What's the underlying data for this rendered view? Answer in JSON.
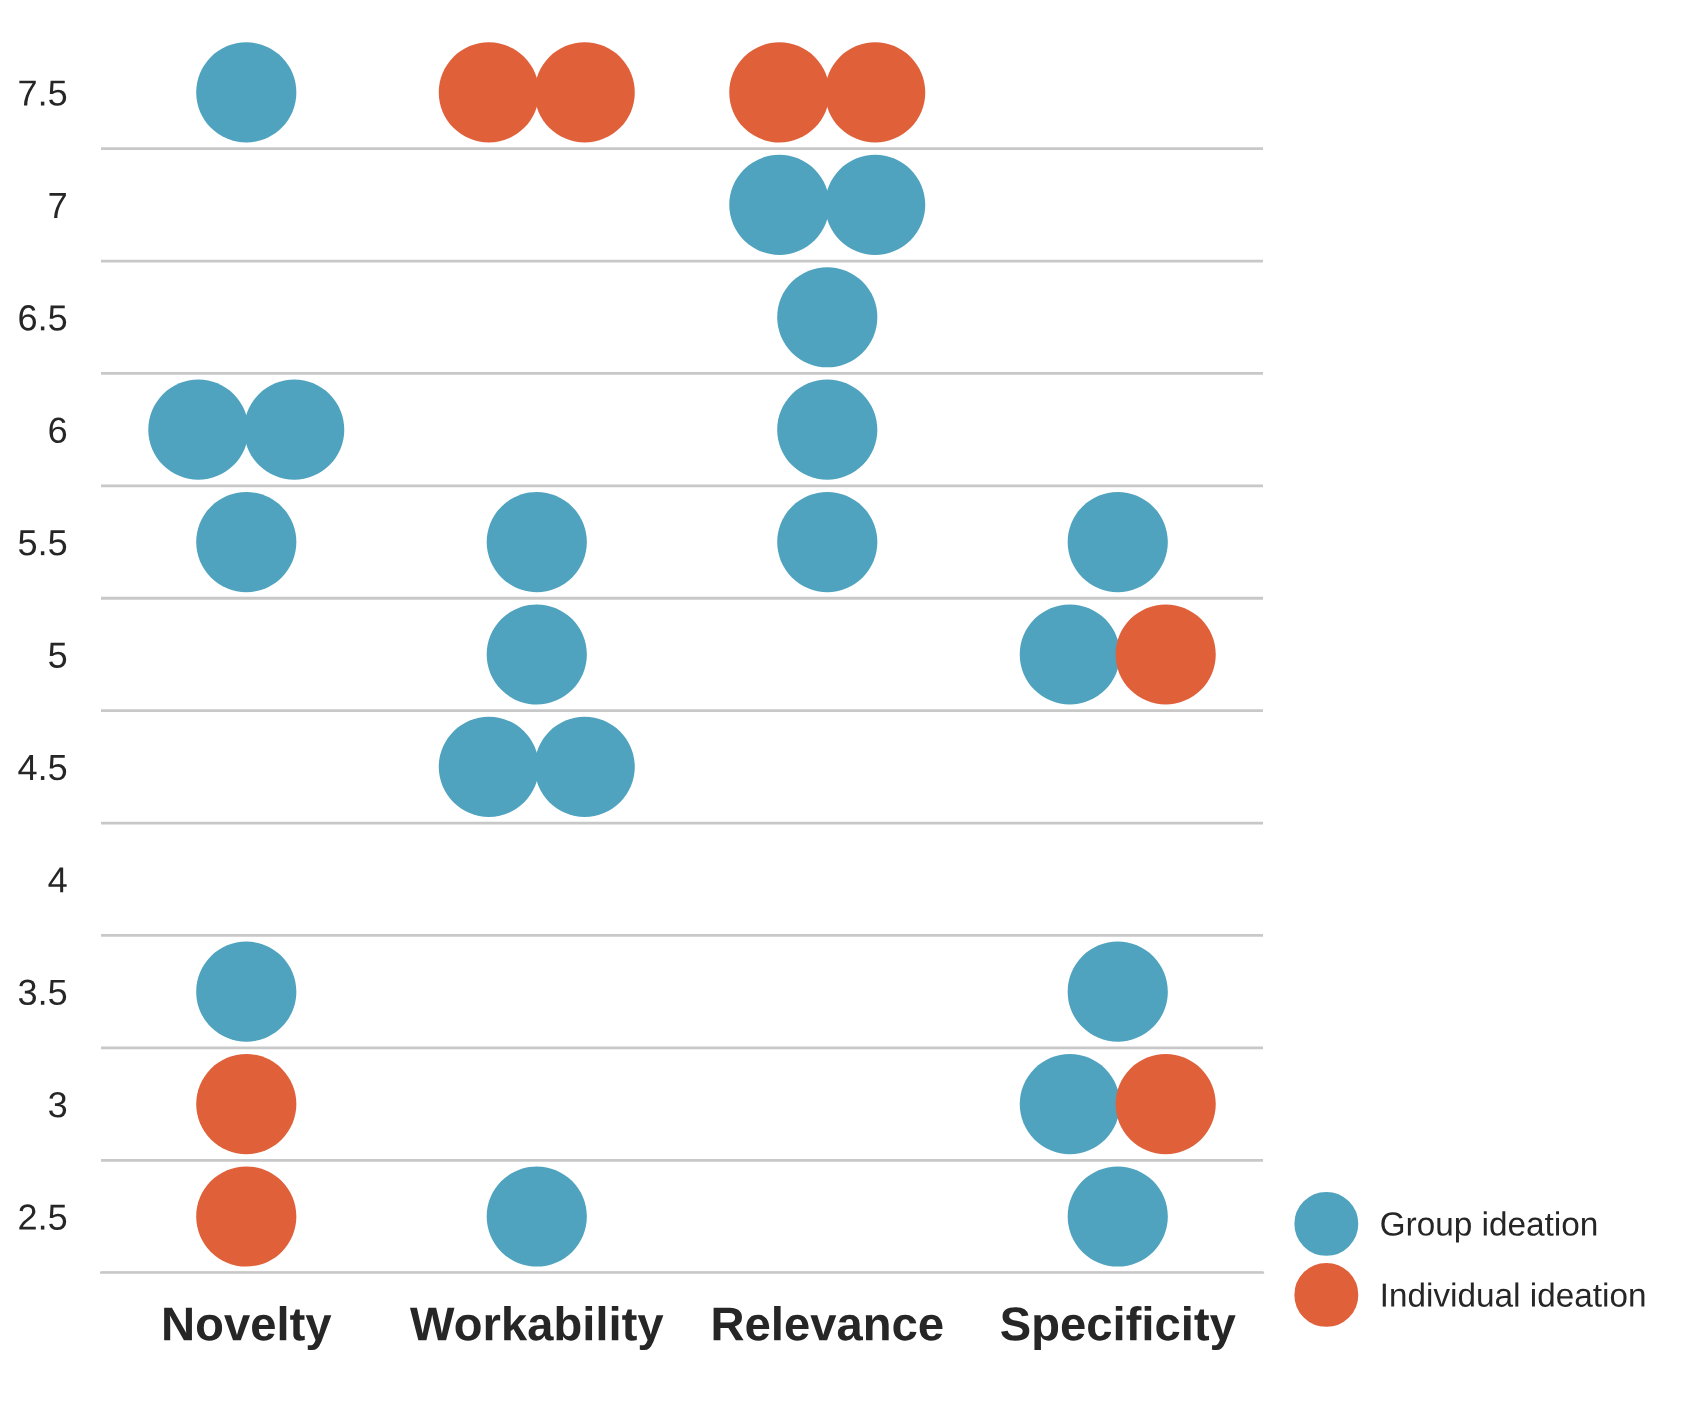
{
  "chart_data": {
    "type": "scatter",
    "categories": [
      "Novelty",
      "Workability",
      "Relevance",
      "Specificity"
    ],
    "series": [
      {
        "name": "Group ideation",
        "color": "#4fa3bf",
        "x": [
          "Novelty",
          "Novelty",
          "Novelty",
          "Novelty",
          "Novelty",
          "Workability",
          "Workability",
          "Workability",
          "Workability",
          "Workability",
          "Relevance",
          "Relevance",
          "Relevance",
          "Relevance",
          "Relevance",
          "Specificity",
          "Specificity",
          "Specificity",
          "Specificity",
          "Specificity"
        ],
        "values": [
          7.5,
          6,
          6,
          5.5,
          3.5,
          5.5,
          5,
          4.5,
          4.5,
          2.5,
          7,
          7,
          6.5,
          6,
          5.5,
          5.5,
          5,
          3.5,
          3,
          2.5
        ]
      },
      {
        "name": "Individual ideation",
        "color": "#e0603a",
        "x": [
          "Novelty",
          "Novelty",
          "Workability",
          "Workability",
          "Relevance",
          "Relevance",
          "Specificity",
          "Specificity"
        ],
        "values": [
          3,
          2.5,
          7.5,
          7.5,
          7.5,
          7.5,
          5,
          3
        ]
      }
    ],
    "ylim": [
      2.25,
      7.5
    ],
    "yticks": [
      2.5,
      3,
      3.5,
      4,
      4.5,
      5,
      5.5,
      6,
      6.5,
      7,
      7.5
    ],
    "grid": "y",
    "legend": "bottom right",
    "marker": "circle"
  }
}
